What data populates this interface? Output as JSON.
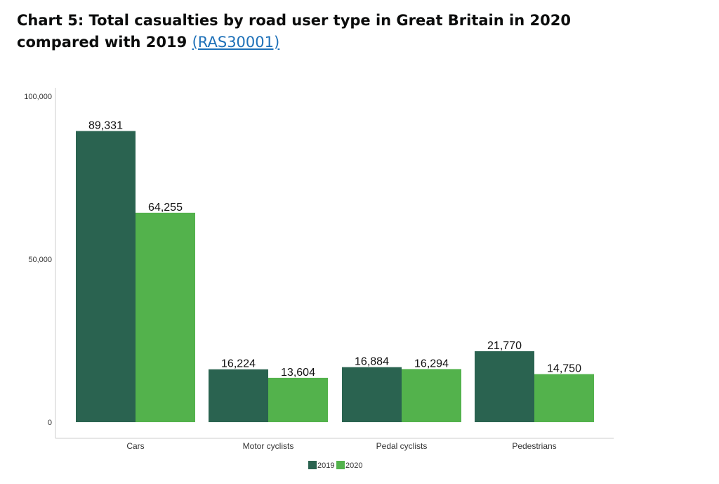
{
  "header": {
    "title": "Chart 5: Total casualties by road user type in Great Britain in 2020 compared with 2019",
    "link_text": "(RAS30001)"
  },
  "chart_data": {
    "type": "bar",
    "categories": [
      "Cars",
      "Motor cyclists",
      "Pedal cyclists",
      "Pedestrians"
    ],
    "series": [
      {
        "name": "2019",
        "values": [
          89331,
          16224,
          16884,
          21770
        ],
        "color": "#2a6350"
      },
      {
        "name": "2020",
        "values": [
          64255,
          13604,
          16294,
          14750
        ],
        "color": "#53b24c"
      }
    ],
    "data_labels": [
      [
        "89,331",
        "16,224",
        "16,884",
        "21,770"
      ],
      [
        "64,255",
        "13,604",
        "16,294",
        "14,750"
      ]
    ],
    "y_ticks": [
      0,
      50000,
      100000
    ],
    "y_tick_labels": [
      "0",
      "50,000",
      "100,000"
    ],
    "ylim": [
      0,
      100000
    ],
    "xlabel": "",
    "ylabel": "",
    "legend_position": "bottom-center",
    "grid": false
  }
}
